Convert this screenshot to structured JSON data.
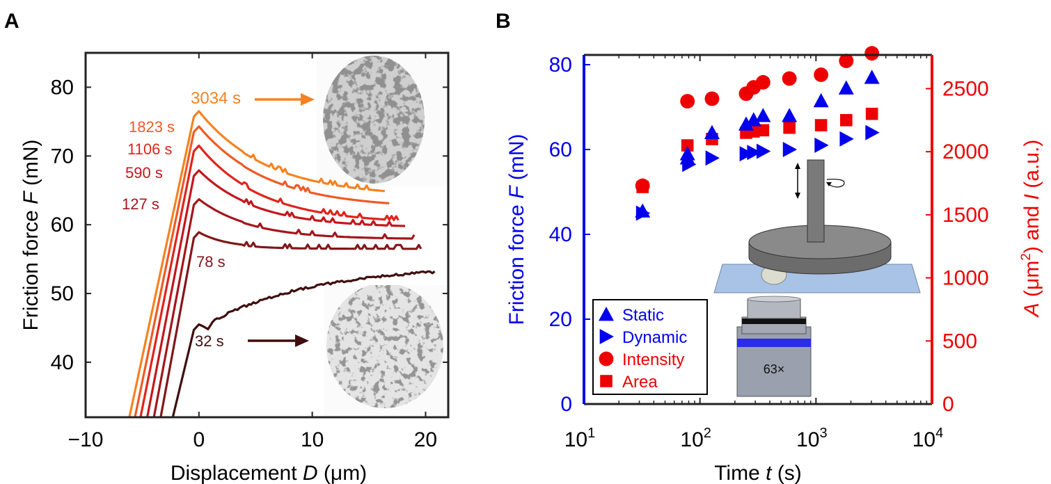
{
  "chart_data": [
    {
      "panel": "A",
      "type": "line",
      "xlabel": "Displacement ",
      "xlabel_var": "D",
      "xlabel_unit": " (μm)",
      "ylabel": "Friction force ",
      "ylabel_var": "F",
      "ylabel_unit": " (mN)",
      "xlim": [
        -10,
        22
      ],
      "ylim": [
        32,
        85
      ],
      "xticks": [
        -10,
        0,
        10,
        20
      ],
      "xtick_labels": [
        "−10",
        "0",
        "10",
        "20"
      ],
      "yticks": [
        40,
        50,
        60,
        70,
        80
      ],
      "series": [
        {
          "name": "3034 s",
          "color": "#f58220",
          "x0": -6.1,
          "peak": 76.5,
          "plateau": 64.2,
          "end": 16.5,
          "decay": 6.0
        },
        {
          "name": "1823 s",
          "color": "#ee5a24",
          "x0": -5.6,
          "peak": 74.3,
          "plateau": 62.5,
          "end": 16.9,
          "decay": 6.0
        },
        {
          "name": "1106 s",
          "color": "#e0231c",
          "x0": -5.1,
          "peak": 71.5,
          "plateau": 60.3,
          "end": 17.6,
          "decay": 5.5
        },
        {
          "name": "590 s",
          "color": "#c4161c",
          "x0": -4.5,
          "peak": 67.9,
          "plateau": 59.7,
          "end": 18.3,
          "decay": 5.0
        },
        {
          "name": "127 s",
          "color": "#a3161c",
          "x0": -3.9,
          "peak": 63.7,
          "plateau": 58.0,
          "end": 19.1,
          "decay": 4.5
        },
        {
          "name": "78 s",
          "color": "#821619",
          "x0": -3.3,
          "peak": 58.9,
          "plateau": 56.6,
          "end": 19.6,
          "decay": 2.5
        },
        {
          "name": "32 s",
          "color": "#3f0d0d",
          "x0": -2.3,
          "peak": 45.5,
          "plateau": 53.6,
          "end": 20.8,
          "decay": 0
        }
      ],
      "annotations": [
        {
          "text": "3034 s",
          "color": "#f58220"
        },
        {
          "text": "32 s",
          "color": "#3f0d0d"
        }
      ]
    },
    {
      "panel": "B",
      "type": "scatter",
      "xscale": "log",
      "xlim": [
        10,
        10000
      ],
      "xtick_exponents": [
        "1",
        "2",
        "3",
        "4"
      ],
      "xlabel": "Time ",
      "xlabel_var": "t",
      "xlabel_unit": " (s)",
      "ylabel_left": "Friction force ",
      "ylabel_left_var": "F",
      "ylabel_left_unit": " (mN)",
      "ylim_left": [
        0,
        80
      ],
      "yticks_left": [
        0,
        20,
        40,
        60,
        80
      ],
      "ylabel_right_var1": "A",
      "ylabel_right_mid": " (μm",
      "ylabel_right_sup": "2",
      "ylabel_right_and": ") and ",
      "ylabel_right_var2": "I",
      "ylabel_right_unit": " (a.u.)",
      "ylim_right": [
        0,
        2800
      ],
      "yticks_right": [
        0,
        500,
        1000,
        1500,
        2000,
        2500
      ],
      "left_axis_color": "#0000ee",
      "right_axis_color": "#ee0000",
      "series": [
        {
          "name": "Static",
          "marker": "triangle-up",
          "axis": "left",
          "color": "#0000ee",
          "points": [
            [
              32,
              45.5
            ],
            [
              78,
              59
            ],
            [
              78,
              58
            ],
            [
              127,
              64
            ],
            [
              250,
              66
            ],
            [
              290,
              67
            ],
            [
              350,
              68
            ],
            [
              590,
              68
            ],
            [
              1106,
              71.5
            ],
            [
              1823,
              74.5
            ],
            [
              3034,
              77
            ]
          ]
        },
        {
          "name": "Dynamic",
          "marker": "triangle-right",
          "axis": "left",
          "color": "#0000ee",
          "points": [
            [
              32,
              45
            ],
            [
              80,
              56.5
            ],
            [
              127,
              58
            ],
            [
              250,
              59
            ],
            [
              290,
              59.3
            ],
            [
              350,
              59.6
            ],
            [
              590,
              60
            ],
            [
              1106,
              61
            ],
            [
              1823,
              62.5
            ],
            [
              3034,
              64
            ]
          ]
        },
        {
          "name": "Intensity",
          "marker": "circle",
          "axis": "right",
          "color": "#ee0000",
          "points": [
            [
              32,
              1730
            ],
            [
              78,
              2400
            ],
            [
              127,
              2420
            ],
            [
              250,
              2460
            ],
            [
              290,
              2510
            ],
            [
              350,
              2550
            ],
            [
              590,
              2580
            ],
            [
              1106,
              2610
            ],
            [
              1823,
              2720
            ],
            [
              3034,
              2780
            ]
          ]
        },
        {
          "name": "Area",
          "marker": "square",
          "axis": "right",
          "color": "#ee0000",
          "points": [
            [
              32,
              1720
            ],
            [
              78,
              2050
            ],
            [
              127,
              2100
            ],
            [
              250,
              2150
            ],
            [
              290,
              2160
            ],
            [
              350,
              2170
            ],
            [
              590,
              2190
            ],
            [
              1106,
              2210
            ],
            [
              1823,
              2250
            ],
            [
              3034,
              2300
            ]
          ]
        }
      ],
      "legend_position": "bottom-left",
      "inset_label": "63×"
    }
  ],
  "panel_labels": {
    "a": "A",
    "b": "B"
  },
  "colors": {
    "left_axis": "#0000ee",
    "right_axis": "#ee0000"
  }
}
